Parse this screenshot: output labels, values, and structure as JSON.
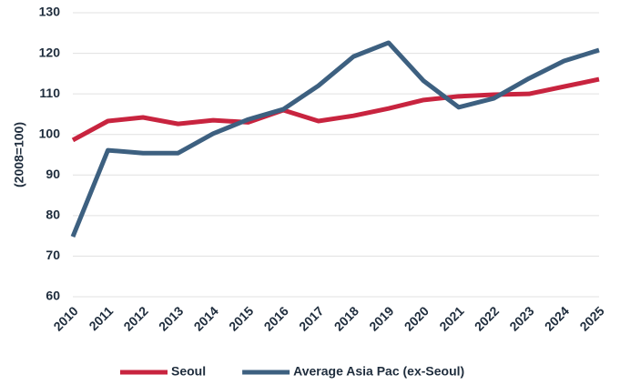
{
  "chart_data": {
    "type": "line",
    "y_label": "(2008=100)",
    "categories": [
      "2010",
      "2011",
      "2012",
      "2013",
      "2014",
      "2015",
      "2016",
      "2017",
      "2018",
      "2019",
      "2020",
      "2021",
      "2022",
      "2023",
      "2024",
      "2025"
    ],
    "series": [
      {
        "name": "Seoul",
        "color": "#c8243f",
        "values": [
          98.6,
          103.3,
          104.2,
          102.6,
          103.5,
          103,
          106,
          103.3,
          104.6,
          106.4,
          108.5,
          109.4,
          109.8,
          110,
          111.8,
          113.6
        ]
      },
      {
        "name": "Average Asia Pac (ex-Seoul)",
        "color": "#3d6080",
        "values": [
          74.8,
          96.1,
          95.4,
          95.4,
          100.2,
          103.7,
          106.2,
          112,
          119.2,
          122.6,
          113.2,
          106.7,
          108.9,
          113.8,
          118.1,
          120.8
        ]
      }
    ],
    "ylim": [
      60,
      130
    ],
    "yticks": [
      60,
      70,
      80,
      90,
      100,
      110,
      120,
      130
    ],
    "grid": true,
    "legend": "bottom"
  }
}
